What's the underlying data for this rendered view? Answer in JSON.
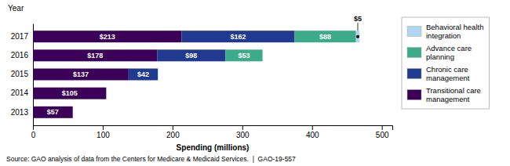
{
  "chart_data": {
    "type": "bar",
    "orientation": "horizontal",
    "stacked": true,
    "data_labels": true,
    "grid": false,
    "legend": "right",
    "xlabel": "Spending (millions)",
    "ylabel": "Year",
    "source": "Source: GAO analysis of data from the Centers for Medicare & Medicaid Services.  |  GAO-19-557",
    "categories": [
      "2017",
      "2016",
      "2015",
      "2014",
      "2013"
    ],
    "xlim": [
      0,
      515
    ],
    "xticks": [
      0,
      100,
      200,
      300,
      400,
      500
    ],
    "series": [
      {
        "name": "Transitional care\nmanagement",
        "color": "#3B0057",
        "values": [
          213,
          178,
          137,
          105,
          57
        ],
        "value_labels": [
          "$213",
          "$178",
          "$137",
          "$105",
          "$57"
        ]
      },
      {
        "name": "Chronic care\nmanagement",
        "color": "#1F3A8F",
        "values": [
          162,
          98,
          42,
          0,
          0
        ],
        "value_labels": [
          "$162",
          "$98",
          "$42",
          null,
          null
        ]
      },
      {
        "name": "Advance care\nplanning",
        "color": "#3DAA8A",
        "values": [
          88,
          53,
          0,
          0,
          0
        ],
        "value_labels": [
          "$88",
          "$53",
          null,
          null,
          null
        ]
      },
      {
        "name": "Behavioral health\nintegration",
        "color": "#ADD8F0",
        "values": [
          5,
          0,
          0,
          0,
          0
        ],
        "value_labels": [
          "$5",
          null,
          null,
          null,
          null
        ]
      }
    ]
  }
}
